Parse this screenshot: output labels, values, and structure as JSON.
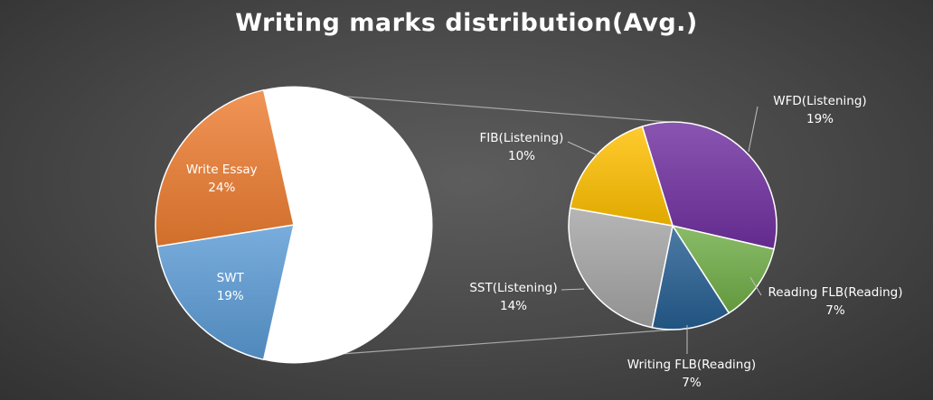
{
  "chart_data": {
    "type": "pie",
    "title": "Writing marks distribution(Avg.)",
    "sub_type": "pie-of-pie",
    "main_pie": {
      "slices": [
        {
          "label": "Write Essay",
          "value": 24,
          "display": "24%",
          "color": "#ed7d31"
        },
        {
          "label": "SWT",
          "value": 19,
          "display": "19%",
          "color": "#5b9bd5"
        },
        {
          "label": "",
          "value": 57,
          "display": "",
          "color": "#ffffff",
          "is_other": true
        }
      ]
    },
    "secondary_pie": {
      "slices": [
        {
          "label": "WFD(Listening)",
          "value": 19,
          "display": "19%",
          "color": "#7030a0"
        },
        {
          "label": "Reading FLB(Reading)",
          "value": 7,
          "display": "7%",
          "color": "#70ad47"
        },
        {
          "label": "Writing FLB(Reading)",
          "value": 7,
          "display": "7%",
          "color": "#255e91"
        },
        {
          "label": "SST(Listening)",
          "value": 14,
          "display": "14%",
          "color": "#a5a5a5"
        },
        {
          "label": "FIB(Listening)",
          "value": 10,
          "display": "10%",
          "color": "#ffc000"
        }
      ]
    },
    "legend": "none"
  }
}
